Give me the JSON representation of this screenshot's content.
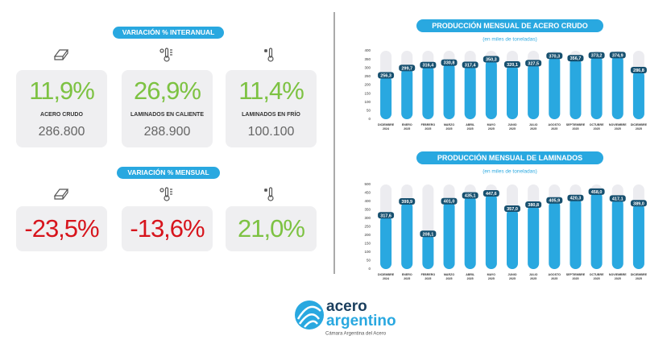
{
  "interanual": {
    "title": "VARIACIÓN % INTERANUAL",
    "cards": [
      {
        "value": "11,9%",
        "label": "ACERO CRUDO",
        "amount": "286.800",
        "color": "#7dc242"
      },
      {
        "value": "26,9%",
        "label": "LAMINADOS EN CALIENTE",
        "amount": "288.900",
        "color": "#7dc242"
      },
      {
        "value": "11,4%",
        "label": "LAMINADOS EN FRÍO",
        "amount": "100.100",
        "color": "#7dc242"
      }
    ]
  },
  "mensual": {
    "title": "VARIACIÓN % MENSUAL",
    "cards": [
      {
        "value": "-23,5%",
        "color": "#d7141c"
      },
      {
        "value": "-13,6%",
        "color": "#d7141c"
      },
      {
        "value": "21,0%",
        "color": "#7dc242"
      }
    ]
  },
  "chart_data": [
    {
      "type": "bar",
      "title": "PRODUCCIÓN MENSUAL DE ACERO CRUDO",
      "subtitle": "(en miles de toneladas)",
      "categories": [
        "DICIEMBRE 2024",
        "ENERO 2025",
        "FEBRERO 2025",
        "MARZO 2025",
        "ABRIL 2025",
        "MAYO 2025",
        "JUNIO 2025",
        "JULIO 2025",
        "AGOSTO 2025",
        "SEPTIEMBRE 2025",
        "OCTUBRE 2025",
        "NOVIEMBRE 2025",
        "DICIEMBRE 2025"
      ],
      "values": [
        256.3,
        299.7,
        316.4,
        330.8,
        317.4,
        350.3,
        320.1,
        327.5,
        370.3,
        356.7,
        373.2,
        374.9,
        286.8
      ],
      "value_labels": [
        "256,3",
        "299,7",
        "316,4",
        "330,8",
        "317,4",
        "350,3",
        "320,1",
        "327,5",
        "370,3",
        "356,7",
        "373,2",
        "374,9",
        "286,8"
      ],
      "color": "#29a8e0",
      "ylim": [
        0,
        400
      ],
      "yticks": [
        0,
        50,
        100,
        150,
        200,
        250,
        300,
        350,
        400
      ]
    },
    {
      "type": "bar",
      "title": "PRODUCCIÓN MENSUAL DE LAMINADOS",
      "subtitle": "(en miles de toneladas)",
      "categories": [
        "DICIEMBRE 2024",
        "ENERO 2025",
        "FEBRERO 2025",
        "MARZO 2025",
        "ABRIL 2025",
        "MAYO 2025",
        "JUNIO 2025",
        "JULIO 2025",
        "AGOSTO 2025",
        "SEPTIEMBRE 2025",
        "OCTUBRE 2025",
        "NOVIEMBRE 2025",
        "DICIEMBRE 2025"
      ],
      "values": [
        317.6,
        399.9,
        208.1,
        401.0,
        435.1,
        447.6,
        357.0,
        380.8,
        405.9,
        420.3,
        458.0,
        417.1,
        389.0
      ],
      "value_labels": [
        "317,6",
        "399,9",
        "208,1",
        "401,0",
        "435,1",
        "447,6",
        "357,0",
        "380,8",
        "405,9",
        "420,3",
        "458,0",
        "417,1",
        "389,0"
      ],
      "color": "#29a8e0",
      "ylim": [
        0,
        500
      ],
      "yticks": [
        0,
        50,
        100,
        150,
        200,
        250,
        300,
        350,
        400,
        450,
        500
      ]
    }
  ],
  "logo": {
    "word1": "acero",
    "word2": "argentino",
    "tagline": "Cámara Argentina del Acero"
  }
}
